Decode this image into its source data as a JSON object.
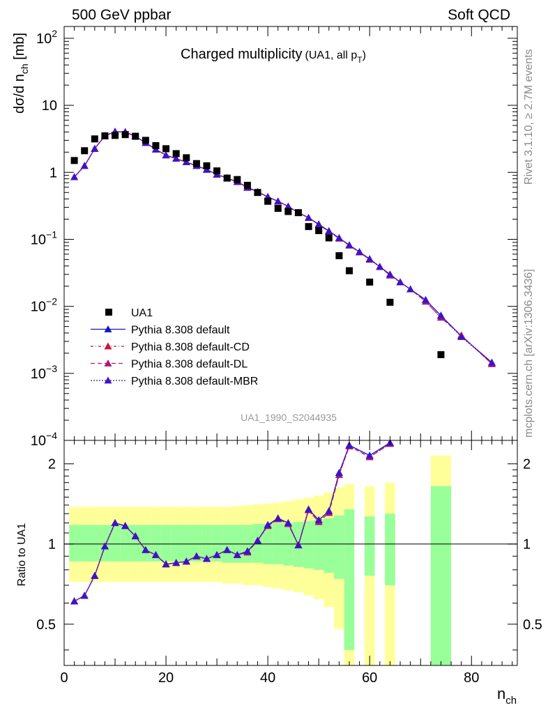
{
  "header": {
    "left": "500 GeV ppbar",
    "right": "Soft QCD"
  },
  "side_labels": {
    "rivet": "Rivet 3.1.10, ≥ 2.7M events",
    "mcplots": "mcplots.cern.ch [arXiv:1306.3436]"
  },
  "chart_data": [
    {
      "type": "scatter",
      "title": "Charged multiplicity",
      "subtitle": "(UA1, all p",
      "subtitle_sub": "T",
      "subtitle_end": ")",
      "ylabel": "dσ/d n",
      "ylabel_sub": "ch",
      "ylabel_unit": " [mb]",
      "yscale": "log",
      "ylim": [
        0.0001,
        150
      ],
      "xlim": [
        0,
        89
      ],
      "watermark": "UA1_1990_S2044935",
      "y_ticks": [
        {
          "v": 100,
          "b": "10",
          "e": "2"
        },
        {
          "v": 10,
          "b": "10",
          "e": ""
        },
        {
          "v": 1,
          "b": "1",
          "e": ""
        },
        {
          "v": 0.1,
          "b": "10",
          "e": "−1"
        },
        {
          "v": 0.01,
          "b": "10",
          "e": "−2"
        },
        {
          "v": 0.001,
          "b": "10",
          "e": "−3"
        },
        {
          "v": 0.0001,
          "b": "10",
          "e": "−4"
        }
      ],
      "legend": [
        {
          "label": "UA1",
          "color": "#000000",
          "marker": "square",
          "dash": ""
        },
        {
          "label": "Pythia 8.308 default",
          "color": "#1414c8",
          "marker": "triangle",
          "dash": ""
        },
        {
          "label": "Pythia 8.308 default-CD",
          "color": "#c8143c",
          "marker": "triangle",
          "dash": "4,3,1,3"
        },
        {
          "label": "Pythia 8.308 default-DL",
          "color": "#b4147a",
          "marker": "triangle",
          "dash": "6,4"
        },
        {
          "label": "Pythia 8.308 default-MBR",
          "color": "#3c14c8",
          "marker": "triangle",
          "dash": "2,2"
        }
      ],
      "data": {
        "x": [
          2,
          4,
          6,
          8,
          10,
          12,
          14,
          16,
          18,
          20,
          22,
          24,
          26,
          28,
          30,
          32,
          34,
          36,
          38,
          40,
          42,
          44,
          46,
          48,
          50,
          52,
          54,
          56,
          60,
          64,
          74
        ],
        "y": [
          1.5,
          2.1,
          3.15,
          3.5,
          3.55,
          3.65,
          3.45,
          3.0,
          2.5,
          2.25,
          1.9,
          1.65,
          1.35,
          1.25,
          1.05,
          0.82,
          0.78,
          0.64,
          0.5,
          0.37,
          0.29,
          0.26,
          0.25,
          0.155,
          0.135,
          0.105,
          0.057,
          0.034,
          0.023,
          0.0115,
          0.0019
        ]
      },
      "series": [
        {
          "name": "Pythia 8.308 default",
          "x": [
            2,
            4,
            6,
            8,
            10,
            12,
            14,
            16,
            18,
            20,
            22,
            24,
            26,
            28,
            30,
            32,
            34,
            36,
            38,
            40,
            42,
            44,
            46,
            48,
            50,
            52,
            54,
            56,
            58,
            60,
            62,
            64,
            66,
            68,
            71,
            74,
            78,
            84
          ],
          "y": [
            0.85,
            1.25,
            2.25,
            3.5,
            4.05,
            4.0,
            3.45,
            2.75,
            2.2,
            1.8,
            1.6,
            1.42,
            1.25,
            1.1,
            0.93,
            0.82,
            0.72,
            0.6,
            0.51,
            0.43,
            0.37,
            0.31,
            0.25,
            0.21,
            0.168,
            0.133,
            0.105,
            0.082,
            0.065,
            0.051,
            0.039,
            0.03,
            0.023,
            0.018,
            0.0125,
            0.0073,
            0.0036,
            0.00145
          ]
        },
        {
          "name": "Pythia 8.308 default-CD",
          "x": [
            2,
            4,
            6,
            8,
            10,
            12,
            14,
            16,
            18,
            20,
            22,
            24,
            26,
            28,
            30,
            32,
            34,
            36,
            38,
            40,
            42,
            44,
            46,
            48,
            50,
            52,
            54,
            56,
            58,
            60,
            62,
            64,
            66,
            68,
            71,
            74,
            78,
            84
          ],
          "y": [
            0.85,
            1.25,
            2.25,
            3.5,
            4.05,
            4.0,
            3.45,
            2.75,
            2.2,
            1.8,
            1.6,
            1.42,
            1.25,
            1.1,
            0.93,
            0.82,
            0.72,
            0.59,
            0.51,
            0.43,
            0.37,
            0.31,
            0.25,
            0.21,
            0.165,
            0.131,
            0.103,
            0.081,
            0.064,
            0.05,
            0.039,
            0.029,
            0.023,
            0.018,
            0.0118,
            0.0068,
            0.0037,
            0.00138
          ]
        },
        {
          "name": "Pythia 8.308 default-DL",
          "x": [
            2,
            4,
            6,
            8,
            10,
            12,
            14,
            16,
            18,
            20,
            22,
            24,
            26,
            28,
            30,
            32,
            34,
            36,
            38,
            40,
            42,
            44,
            46,
            48,
            50,
            52,
            54,
            56,
            58,
            60,
            62,
            64,
            66,
            68,
            71,
            74,
            78,
            84
          ],
          "y": [
            0.85,
            1.25,
            2.25,
            3.5,
            4.05,
            4.0,
            3.45,
            2.75,
            2.2,
            1.8,
            1.6,
            1.42,
            1.25,
            1.1,
            0.93,
            0.82,
            0.72,
            0.59,
            0.51,
            0.43,
            0.37,
            0.31,
            0.25,
            0.21,
            0.165,
            0.131,
            0.103,
            0.081,
            0.064,
            0.05,
            0.039,
            0.029,
            0.023,
            0.018,
            0.0118,
            0.0068,
            0.0037,
            0.00138
          ]
        },
        {
          "name": "Pythia 8.308 default-MBR",
          "x": [
            2,
            4,
            6,
            8,
            10,
            12,
            14,
            16,
            18,
            20,
            22,
            24,
            26,
            28,
            30,
            32,
            34,
            36,
            38,
            40,
            42,
            44,
            46,
            48,
            50,
            52,
            54,
            56,
            58,
            60,
            62,
            64,
            66,
            68,
            71,
            74,
            78,
            84
          ],
          "y": [
            0.85,
            1.25,
            2.25,
            3.5,
            4.05,
            4.0,
            3.45,
            2.75,
            2.2,
            1.8,
            1.6,
            1.42,
            1.25,
            1.1,
            0.93,
            0.82,
            0.72,
            0.6,
            0.51,
            0.43,
            0.37,
            0.31,
            0.25,
            0.21,
            0.168,
            0.133,
            0.105,
            0.082,
            0.065,
            0.051,
            0.039,
            0.03,
            0.023,
            0.018,
            0.0125,
            0.0073,
            0.0035,
            0.00145
          ]
        }
      ]
    },
    {
      "type": "scatter",
      "ylabel": "Ratio to UA1",
      "xlabel": "n",
      "xlabel_sub": "ch",
      "xlim": [
        0,
        89
      ],
      "ylim": [
        0.35,
        2.45
      ],
      "yscale": "log",
      "x_ticks": [
        0,
        20,
        40,
        60,
        80
      ],
      "y_ticks": [
        {
          "v": 0.5,
          "label": "0.5"
        },
        {
          "v": 1,
          "label": "1"
        },
        {
          "v": 2,
          "label": "2"
        }
      ],
      "band_colors": {
        "inner": "#99ff99",
        "outer": "#ffff99"
      },
      "bands": [
        {
          "x0": 1,
          "x1": 3,
          "in_lo": 0.86,
          "in_hi": 1.18,
          "out_lo": 0.72,
          "out_hi": 1.38
        },
        {
          "x0": 3,
          "x1": 5,
          "in_lo": 0.86,
          "in_hi": 1.18,
          "out_lo": 0.72,
          "out_hi": 1.38
        },
        {
          "x0": 5,
          "x1": 7,
          "in_lo": 0.86,
          "in_hi": 1.18,
          "out_lo": 0.72,
          "out_hi": 1.38
        },
        {
          "x0": 7,
          "x1": 9,
          "in_lo": 0.86,
          "in_hi": 1.18,
          "out_lo": 0.72,
          "out_hi": 1.38
        },
        {
          "x0": 9,
          "x1": 11,
          "in_lo": 0.86,
          "in_hi": 1.18,
          "out_lo": 0.72,
          "out_hi": 1.38
        },
        {
          "x0": 11,
          "x1": 13,
          "in_lo": 0.86,
          "in_hi": 1.18,
          "out_lo": 0.72,
          "out_hi": 1.38
        },
        {
          "x0": 13,
          "x1": 15,
          "in_lo": 0.86,
          "in_hi": 1.18,
          "out_lo": 0.72,
          "out_hi": 1.38
        },
        {
          "x0": 15,
          "x1": 17,
          "in_lo": 0.86,
          "in_hi": 1.18,
          "out_lo": 0.72,
          "out_hi": 1.38
        },
        {
          "x0": 17,
          "x1": 19,
          "in_lo": 0.86,
          "in_hi": 1.18,
          "out_lo": 0.72,
          "out_hi": 1.38
        },
        {
          "x0": 19,
          "x1": 21,
          "in_lo": 0.86,
          "in_hi": 1.18,
          "out_lo": 0.72,
          "out_hi": 1.38
        },
        {
          "x0": 21,
          "x1": 23,
          "in_lo": 0.86,
          "in_hi": 1.18,
          "out_lo": 0.72,
          "out_hi": 1.38
        },
        {
          "x0": 23,
          "x1": 25,
          "in_lo": 0.86,
          "in_hi": 1.18,
          "out_lo": 0.72,
          "out_hi": 1.38
        },
        {
          "x0": 25,
          "x1": 27,
          "in_lo": 0.86,
          "in_hi": 1.18,
          "out_lo": 0.72,
          "out_hi": 1.38
        },
        {
          "x0": 27,
          "x1": 29,
          "in_lo": 0.86,
          "in_hi": 1.18,
          "out_lo": 0.72,
          "out_hi": 1.38
        },
        {
          "x0": 29,
          "x1": 31,
          "in_lo": 0.86,
          "in_hi": 1.18,
          "out_lo": 0.72,
          "out_hi": 1.38
        },
        {
          "x0": 31,
          "x1": 33,
          "in_lo": 0.85,
          "in_hi": 1.18,
          "out_lo": 0.71,
          "out_hi": 1.38
        },
        {
          "x0": 33,
          "x1": 35,
          "in_lo": 0.85,
          "in_hi": 1.18,
          "out_lo": 0.71,
          "out_hi": 1.39
        },
        {
          "x0": 35,
          "x1": 37,
          "in_lo": 0.85,
          "in_hi": 1.18,
          "out_lo": 0.7,
          "out_hi": 1.4
        },
        {
          "x0": 37,
          "x1": 39,
          "in_lo": 0.85,
          "in_hi": 1.19,
          "out_lo": 0.7,
          "out_hi": 1.41
        },
        {
          "x0": 39,
          "x1": 41,
          "in_lo": 0.84,
          "in_hi": 1.19,
          "out_lo": 0.69,
          "out_hi": 1.42
        },
        {
          "x0": 41,
          "x1": 43,
          "in_lo": 0.84,
          "in_hi": 1.2,
          "out_lo": 0.68,
          "out_hi": 1.43
        },
        {
          "x0": 43,
          "x1": 45,
          "in_lo": 0.83,
          "in_hi": 1.2,
          "out_lo": 0.67,
          "out_hi": 1.45
        },
        {
          "x0": 45,
          "x1": 47,
          "in_lo": 0.82,
          "in_hi": 1.21,
          "out_lo": 0.66,
          "out_hi": 1.47
        },
        {
          "x0": 47,
          "x1": 49,
          "in_lo": 0.81,
          "in_hi": 1.22,
          "out_lo": 0.64,
          "out_hi": 1.49
        },
        {
          "x0": 49,
          "x1": 51,
          "in_lo": 0.8,
          "in_hi": 1.23,
          "out_lo": 0.62,
          "out_hi": 1.52
        },
        {
          "x0": 51,
          "x1": 53,
          "in_lo": 0.78,
          "in_hi": 1.25,
          "out_lo": 0.58,
          "out_hi": 1.56
        },
        {
          "x0": 53,
          "x1": 55,
          "in_lo": 0.74,
          "in_hi": 1.28,
          "out_lo": 0.48,
          "out_hi": 1.63
        },
        {
          "x0": 55,
          "x1": 57,
          "in_lo": 0.4,
          "in_hi": 1.35,
          "out_lo": 0.35,
          "out_hi": 1.68
        },
        {
          "x0": 59,
          "x1": 61,
          "in_lo": 0.76,
          "in_hi": 1.27,
          "out_lo": 0.35,
          "out_hi": 1.65
        },
        {
          "x0": 63,
          "x1": 65,
          "in_lo": 0.7,
          "in_hi": 1.3,
          "out_lo": 0.35,
          "out_hi": 1.7
        },
        {
          "x0": 72,
          "x1": 76,
          "in_lo": 0.35,
          "in_hi": 1.65,
          "out_lo": 0.35,
          "out_hi": 2.15
        }
      ],
      "reference": 1.0,
      "series": [
        {
          "name": "Pythia 8.308 default",
          "x": [
            2,
            4,
            6,
            8,
            10,
            12,
            14,
            16,
            18,
            20,
            22,
            24,
            26,
            28,
            30,
            32,
            34,
            36,
            38,
            40,
            42,
            44,
            46,
            48,
            50,
            52,
            54,
            56,
            60,
            64
          ],
          "y": [
            0.61,
            0.64,
            0.76,
            0.98,
            1.2,
            1.17,
            1.07,
            0.95,
            0.91,
            0.84,
            0.85,
            0.86,
            0.9,
            0.88,
            0.91,
            0.95,
            0.91,
            0.94,
            1.03,
            1.18,
            1.25,
            1.2,
            0.99,
            1.35,
            1.23,
            1.33,
            1.85,
            2.35,
            2.15,
            2.4
          ]
        },
        {
          "name": "Pythia 8.308 default-CD",
          "x": [
            2,
            4,
            6,
            8,
            10,
            12,
            14,
            16,
            18,
            20,
            22,
            24,
            26,
            28,
            30,
            32,
            34,
            36,
            38,
            40,
            42,
            44,
            46,
            48,
            50,
            52,
            54,
            56,
            60,
            64
          ],
          "y": [
            0.61,
            0.64,
            0.76,
            0.98,
            1.2,
            1.17,
            1.07,
            0.95,
            0.91,
            0.84,
            0.85,
            0.86,
            0.9,
            0.88,
            0.91,
            0.95,
            0.91,
            0.93,
            1.03,
            1.17,
            1.24,
            1.19,
            0.99,
            1.34,
            1.21,
            1.31,
            1.82,
            2.33,
            2.12,
            2.38
          ]
        },
        {
          "name": "Pythia 8.308 default-DL",
          "x": [
            2,
            4,
            6,
            8,
            10,
            12,
            14,
            16,
            18,
            20,
            22,
            24,
            26,
            28,
            30,
            32,
            34,
            36,
            38,
            40,
            42,
            44,
            46,
            48,
            50,
            52,
            54,
            56,
            60,
            64
          ],
          "y": [
            0.61,
            0.64,
            0.76,
            0.98,
            1.2,
            1.17,
            1.07,
            0.95,
            0.91,
            0.84,
            0.85,
            0.86,
            0.9,
            0.88,
            0.91,
            0.95,
            0.91,
            0.93,
            1.03,
            1.17,
            1.24,
            1.19,
            0.99,
            1.34,
            1.21,
            1.31,
            1.82,
            2.33,
            2.12,
            2.38
          ]
        },
        {
          "name": "Pythia 8.308 default-MBR",
          "x": [
            2,
            4,
            6,
            8,
            10,
            12,
            14,
            16,
            18,
            20,
            22,
            24,
            26,
            28,
            30,
            32,
            34,
            36,
            38,
            40,
            42,
            44,
            46,
            48,
            50,
            52,
            54,
            56,
            60,
            64
          ],
          "y": [
            0.61,
            0.64,
            0.76,
            0.98,
            1.2,
            1.17,
            1.07,
            0.95,
            0.91,
            0.84,
            0.85,
            0.86,
            0.9,
            0.88,
            0.91,
            0.95,
            0.91,
            0.94,
            1.03,
            1.18,
            1.25,
            1.2,
            0.99,
            1.35,
            1.23,
            1.33,
            1.85,
            2.35,
            2.15,
            2.4
          ]
        }
      ]
    }
  ]
}
